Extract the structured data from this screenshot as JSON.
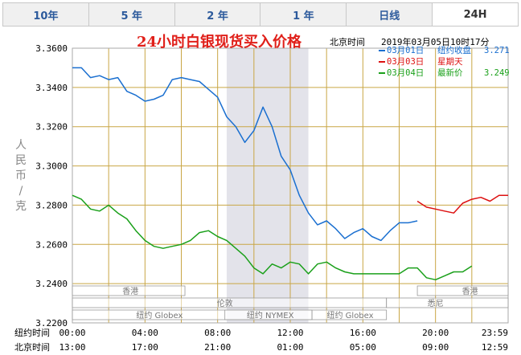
{
  "tabs": [
    {
      "label": "10年",
      "active": false
    },
    {
      "label": "5 年",
      "active": false
    },
    {
      "label": "2 年",
      "active": false
    },
    {
      "label": "1 年",
      "active": false
    },
    {
      "label": "日线",
      "active": false
    },
    {
      "label": "24H",
      "active": true
    }
  ],
  "header": {
    "title": "24小时白银现货买入价格",
    "beijing_label": "北京时间",
    "datetime": "2019年03月05日10时17分"
  },
  "y_unit_label": "人民币/克",
  "markets": [
    "香港",
    "纽约 Globex",
    "伦敦",
    "纽约 NYMEX",
    "纽约 Globex",
    "悉尼",
    "香港"
  ],
  "chart_data": {
    "type": "line",
    "title": "24小时白银现货买入价格",
    "ylabel": "人民币/克",
    "ylim": [
      3.22,
      3.36
    ],
    "yticks": [
      "3.3600",
      "3.3400",
      "3.3200",
      "3.3000",
      "3.2800",
      "3.2600",
      "3.2400",
      "3.2200"
    ],
    "xlim": [
      0,
      24
    ],
    "x_rows": [
      {
        "label": "纽约时间",
        "ticks": [
          "00:00",
          "04:00",
          "08:00",
          "12:00",
          "16:00",
          "20:00",
          "23:59"
        ]
      },
      {
        "label": "北京时间",
        "ticks": [
          "13:00",
          "17:00",
          "21:00",
          "01:00",
          "05:00",
          "09:00",
          "12:59"
        ]
      }
    ],
    "shaded_range": [
      8.5,
      13.0
    ],
    "grid": true,
    "legend_position": "top-right",
    "series": [
      {
        "name": "03月01日",
        "legend_label": "纽约收盘",
        "legend_value": "3.271",
        "color": "#1a6fd0",
        "x": [
          0,
          0.5,
          1,
          1.5,
          2,
          2.5,
          3,
          3.5,
          4,
          4.5,
          5,
          5.5,
          6,
          6.5,
          7,
          7.5,
          8,
          8.5,
          9,
          9.5,
          10,
          10.5,
          11,
          11.5,
          12,
          12.5,
          13,
          13.5,
          14,
          14.5,
          15,
          15.5,
          16,
          16.5,
          17,
          17.5,
          18,
          18.5,
          19
        ],
        "y": [
          3.35,
          3.35,
          3.345,
          3.346,
          3.344,
          3.345,
          3.338,
          3.336,
          3.333,
          3.334,
          3.336,
          3.344,
          3.345,
          3.344,
          3.343,
          3.339,
          3.335,
          3.325,
          3.32,
          3.312,
          3.318,
          3.33,
          3.32,
          3.305,
          3.298,
          3.285,
          3.276,
          3.27,
          3.272,
          3.268,
          3.263,
          3.266,
          3.268,
          3.264,
          3.262,
          3.267,
          3.271,
          3.271,
          3.272
        ]
      },
      {
        "name": "03月03日",
        "legend_label": "星期天",
        "legend_value": "",
        "color": "#dd1111",
        "x": [
          19,
          19.5,
          20,
          20.5,
          21,
          21.5,
          22,
          22.5,
          23,
          23.5,
          24
        ],
        "y": [
          3.282,
          3.279,
          3.278,
          3.277,
          3.276,
          3.281,
          3.283,
          3.284,
          3.282,
          3.285,
          3.285
        ]
      },
      {
        "name": "03月04日",
        "legend_label": "最新价",
        "legend_value": "3.249",
        "color": "#1aa01a",
        "x": [
          0,
          0.5,
          1,
          1.5,
          2,
          2.5,
          3,
          3.5,
          4,
          4.5,
          5,
          5.5,
          6,
          6.5,
          7,
          7.5,
          8,
          8.5,
          9,
          9.5,
          10,
          10.5,
          11,
          11.5,
          12,
          12.5,
          13,
          13.5,
          14,
          14.5,
          15,
          15.5,
          16,
          16.5,
          17,
          17.5,
          18,
          18.5,
          19,
          19.5,
          20,
          20.5,
          21,
          21.5,
          22
        ],
        "y": [
          3.285,
          3.283,
          3.278,
          3.277,
          3.28,
          3.276,
          3.273,
          3.267,
          3.262,
          3.259,
          3.258,
          3.259,
          3.26,
          3.262,
          3.266,
          3.267,
          3.264,
          3.262,
          3.258,
          3.254,
          3.248,
          3.245,
          3.25,
          3.248,
          3.251,
          3.25,
          3.245,
          3.25,
          3.251,
          3.248,
          3.246,
          3.245,
          3.245,
          3.245,
          3.245,
          3.245,
          3.245,
          3.248,
          3.248,
          3.243,
          3.242,
          3.244,
          3.246,
          3.246,
          3.249
        ]
      }
    ]
  }
}
